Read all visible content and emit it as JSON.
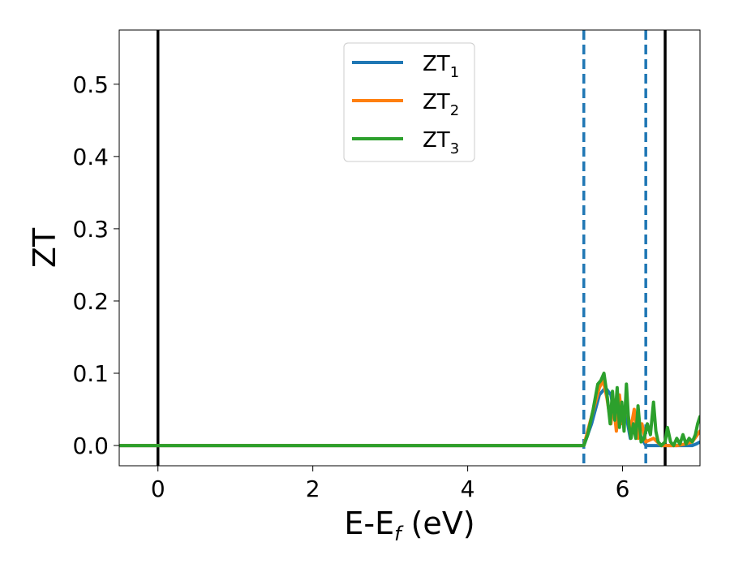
{
  "chart_data": {
    "type": "line",
    "title": "",
    "xlabel": {
      "main": "E-E",
      "sub": "f",
      "tail": " (eV)"
    },
    "ylabel": "ZT",
    "xlim": [
      -0.5,
      7.0
    ],
    "ylim": [
      -0.028,
      0.575
    ],
    "xticks": [
      0,
      2,
      4,
      6
    ],
    "xtick_labels": [
      "0",
      "2",
      "4",
      "6"
    ],
    "yticks": [
      0.0,
      0.1,
      0.2,
      0.3,
      0.4,
      0.5
    ],
    "ytick_labels": [
      "0.0",
      "0.1",
      "0.2",
      "0.3",
      "0.4",
      "0.5"
    ],
    "grid": false,
    "legend_position": "top-center",
    "vlines": [
      {
        "x": 0.0,
        "style": "solid",
        "color": "#000000"
      },
      {
        "x": 6.55,
        "style": "solid",
        "color": "#000000"
      },
      {
        "x": 5.5,
        "style": "dashed",
        "color": "#1f77b4"
      },
      {
        "x": 6.3,
        "style": "dashed",
        "color": "#1f77b4"
      }
    ],
    "series": [
      {
        "name": "ZT₁",
        "legend_main": "ZT",
        "legend_sub": "1",
        "color": "#1f77b4",
        "x": [
          -0.5,
          5.5,
          5.6,
          5.7,
          5.78,
          5.85,
          5.9,
          5.95,
          6.0,
          6.05,
          6.1,
          6.15,
          6.2,
          6.25,
          6.3,
          6.4,
          6.5,
          6.6,
          6.7,
          6.8,
          6.9,
          6.95,
          7.0
        ],
        "y": [
          0.0,
          0.0,
          0.03,
          0.07,
          0.08,
          0.07,
          0.04,
          0.05,
          0.03,
          0.04,
          0.01,
          0.03,
          0.02,
          0.01,
          0.0,
          0.0,
          0.0,
          0.0,
          0.0,
          0.0,
          0.0,
          0.002,
          0.005
        ]
      },
      {
        "name": "ZT₂",
        "legend_main": "ZT",
        "legend_sub": "2",
        "color": "#ff7f0e",
        "x": [
          -0.5,
          5.5,
          5.6,
          5.7,
          5.75,
          5.8,
          5.85,
          5.88,
          5.92,
          5.96,
          6.0,
          6.05,
          6.1,
          6.15,
          6.2,
          6.25,
          6.3,
          6.4,
          6.5,
          6.6,
          6.7,
          6.8,
          6.9,
          7.0
        ],
        "y": [
          0.0,
          0.0,
          0.04,
          0.08,
          0.09,
          0.065,
          0.03,
          0.06,
          0.02,
          0.07,
          0.03,
          0.06,
          0.02,
          0.05,
          0.01,
          0.03,
          0.005,
          0.01,
          0.0,
          0.0,
          0.0,
          0.002,
          0.005,
          0.02
        ]
      },
      {
        "name": "ZT₃",
        "legend_main": "ZT",
        "legend_sub": "3",
        "color": "#2ca02c",
        "x": [
          -0.5,
          5.5,
          5.55,
          5.62,
          5.68,
          5.72,
          5.76,
          5.8,
          5.84,
          5.87,
          5.9,
          5.93,
          5.96,
          5.99,
          6.02,
          6.05,
          6.08,
          6.11,
          6.14,
          6.17,
          6.2,
          6.24,
          6.28,
          6.32,
          6.36,
          6.4,
          6.43,
          6.46,
          6.5,
          6.55,
          6.58,
          6.62,
          6.66,
          6.7,
          6.74,
          6.78,
          6.82,
          6.86,
          6.9,
          6.94,
          6.97,
          7.0
        ],
        "y": [
          0.0,
          0.0,
          0.015,
          0.05,
          0.085,
          0.09,
          0.1,
          0.07,
          0.03,
          0.075,
          0.035,
          0.08,
          0.025,
          0.06,
          0.02,
          0.085,
          0.03,
          0.01,
          0.03,
          0.01,
          0.055,
          0.005,
          0.01,
          0.03,
          0.015,
          0.06,
          0.02,
          0.005,
          0.0,
          0.005,
          0.025,
          0.005,
          0.0,
          0.01,
          0.002,
          0.015,
          0.002,
          0.01,
          0.005,
          0.015,
          0.03,
          0.04
        ]
      }
    ]
  }
}
